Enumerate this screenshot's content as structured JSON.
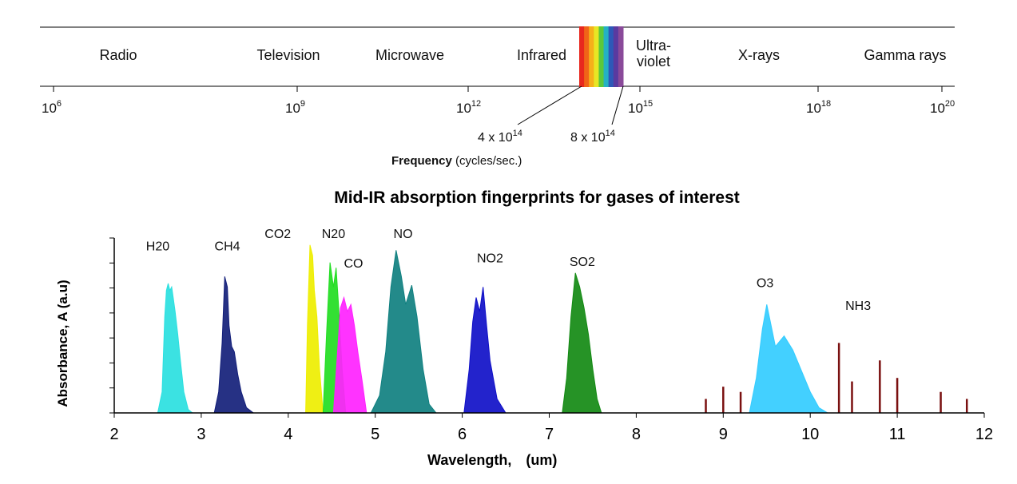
{
  "chart_data": [
    {
      "type": "other",
      "bands": [
        "Radio",
        "Television",
        "Microwave",
        "Infrared",
        "Ultra-\nviolet",
        "X-rays",
        "Gamma rays"
      ],
      "frequency_axis": {
        "label": "Frequency",
        "units": "(cycles/sec.)",
        "scale": "log",
        "ticks": [
          {
            "base": "10",
            "exp": "6",
            "value": 1000000.0
          },
          {
            "base": "10",
            "exp": "9",
            "value": 1000000000.0
          },
          {
            "base": "10",
            "exp": "12",
            "value": 1000000000000.0
          },
          {
            "base": "10",
            "exp": "15",
            "value": 1000000000000000.0
          },
          {
            "base": "10",
            "exp": "18",
            "value": 1e+18
          },
          {
            "base": "10",
            "exp": "20",
            "value": 1e+20
          }
        ]
      },
      "visible_light": {
        "start": {
          "mantissa": "4 x 10",
          "exp": "14",
          "value": 400000000000000.0
        },
        "end": {
          "mantissa": "8 x 10",
          "exp": "14",
          "value": 800000000000000.0
        },
        "colors": [
          "#e8281e",
          "#f06418",
          "#f6b01a",
          "#e8e624",
          "#5cc83a",
          "#25b1c3",
          "#2d59b8",
          "#5a3aa0",
          "#8a4a9a"
        ]
      }
    },
    {
      "type": "area",
      "title": "Mid-IR absorption fingerprints for gases of interest",
      "xlabel": "Wavelength,",
      "xunit": "(um)",
      "ylabel": "Absorbance, A (a.u)",
      "xlim": [
        2,
        12
      ],
      "ylim": [
        0,
        1
      ],
      "xticks": [
        "2",
        "3",
        "4",
        "5",
        "6",
        "7",
        "8",
        "9",
        "10",
        "11",
        "12"
      ],
      "grid": false,
      "series": [
        {
          "name": "H20",
          "color": "#2ae0e0",
          "label_at": [
            2.5,
            0.93
          ],
          "points": [
            [
              2.5,
              0
            ],
            [
              2.55,
              0.12
            ],
            [
              2.58,
              0.55
            ],
            [
              2.6,
              0.7
            ],
            [
              2.62,
              0.74
            ],
            [
              2.64,
              0.7
            ],
            [
              2.66,
              0.72
            ],
            [
              2.68,
              0.65
            ],
            [
              2.7,
              0.58
            ],
            [
              2.73,
              0.45
            ],
            [
              2.76,
              0.3
            ],
            [
              2.8,
              0.12
            ],
            [
              2.85,
              0.02
            ],
            [
              2.9,
              0
            ]
          ]
        },
        {
          "name": "CH4",
          "color": "#14207a",
          "label_at": [
            3.3,
            0.93
          ],
          "points": [
            [
              3.15,
              0
            ],
            [
              3.2,
              0.12
            ],
            [
              3.24,
              0.4
            ],
            [
              3.27,
              0.78
            ],
            [
              3.3,
              0.72
            ],
            [
              3.32,
              0.5
            ],
            [
              3.35,
              0.38
            ],
            [
              3.38,
              0.35
            ],
            [
              3.42,
              0.22
            ],
            [
              3.46,
              0.12
            ],
            [
              3.52,
              0.03
            ],
            [
              3.6,
              0
            ]
          ]
        },
        {
          "name": "CO2",
          "color": "#eeee00",
          "label_at": [
            3.88,
            1.0
          ],
          "points": [
            [
              4.2,
              0
            ],
            [
              4.22,
              0.5
            ],
            [
              4.25,
              0.96
            ],
            [
              4.28,
              0.9
            ],
            [
              4.3,
              0.7
            ],
            [
              4.33,
              0.55
            ],
            [
              4.36,
              0.25
            ],
            [
              4.4,
              0
            ]
          ]
        },
        {
          "name": "N20",
          "color": "#22dd22",
          "label_at": [
            4.52,
            1.0
          ],
          "points": [
            [
              4.4,
              0
            ],
            [
              4.44,
              0.45
            ],
            [
              4.48,
              0.86
            ],
            [
              4.52,
              0.72
            ],
            [
              4.55,
              0.83
            ],
            [
              4.58,
              0.6
            ],
            [
              4.62,
              0.25
            ],
            [
              4.66,
              0
            ]
          ]
        },
        {
          "name": "CO",
          "color": "#ff22ff",
          "label_at": [
            4.75,
            0.83
          ],
          "points": [
            [
              4.52,
              0
            ],
            [
              4.56,
              0.3
            ],
            [
              4.6,
              0.6
            ],
            [
              4.64,
              0.66
            ],
            [
              4.68,
              0.58
            ],
            [
              4.72,
              0.62
            ],
            [
              4.76,
              0.5
            ],
            [
              4.8,
              0.35
            ],
            [
              4.85,
              0.18
            ],
            [
              4.9,
              0
            ]
          ]
        },
        {
          "name": "NO",
          "color": "#108080",
          "label_at": [
            5.32,
            1.0
          ],
          "points": [
            [
              4.95,
              0
            ],
            [
              5.05,
              0.1
            ],
            [
              5.12,
              0.35
            ],
            [
              5.18,
              0.72
            ],
            [
              5.24,
              0.93
            ],
            [
              5.3,
              0.78
            ],
            [
              5.35,
              0.62
            ],
            [
              5.42,
              0.73
            ],
            [
              5.48,
              0.55
            ],
            [
              5.55,
              0.25
            ],
            [
              5.62,
              0.05
            ],
            [
              5.7,
              0
            ]
          ]
        },
        {
          "name": "NO2",
          "color": "#1010c8",
          "label_at": [
            6.32,
            0.86
          ],
          "points": [
            [
              6.02,
              0
            ],
            [
              6.08,
              0.25
            ],
            [
              6.12,
              0.52
            ],
            [
              6.16,
              0.66
            ],
            [
              6.2,
              0.58
            ],
            [
              6.24,
              0.72
            ],
            [
              6.28,
              0.5
            ],
            [
              6.32,
              0.3
            ],
            [
              6.4,
              0.08
            ],
            [
              6.5,
              0
            ]
          ]
        },
        {
          "name": "SO2",
          "color": "#138a13",
          "label_at": [
            7.38,
            0.84
          ],
          "points": [
            [
              7.15,
              0
            ],
            [
              7.2,
              0.2
            ],
            [
              7.25,
              0.55
            ],
            [
              7.3,
              0.8
            ],
            [
              7.35,
              0.72
            ],
            [
              7.4,
              0.6
            ],
            [
              7.45,
              0.45
            ],
            [
              7.5,
              0.25
            ],
            [
              7.55,
              0.08
            ],
            [
              7.6,
              0
            ]
          ]
        },
        {
          "name": "O3",
          "color": "#33ccff",
          "label_at": [
            9.48,
            0.72
          ],
          "points": [
            [
              9.3,
              0
            ],
            [
              9.38,
              0.2
            ],
            [
              9.45,
              0.48
            ],
            [
              9.5,
              0.62
            ],
            [
              9.55,
              0.5
            ],
            [
              9.6,
              0.38
            ],
            [
              9.7,
              0.44
            ],
            [
              9.8,
              0.36
            ],
            [
              9.9,
              0.24
            ],
            [
              10.0,
              0.12
            ],
            [
              10.1,
              0.03
            ],
            [
              10.2,
              0
            ]
          ]
        },
        {
          "name": "NH3",
          "color": "#7a1010",
          "label_at": [
            10.55,
            0.59
          ],
          "points": [
            [
              8.6,
              0
            ],
            [
              8.8,
              0.08
            ],
            [
              9.0,
              0.15
            ],
            [
              9.2,
              0.12
            ],
            [
              10.33,
              0.4
            ],
            [
              10.48,
              0.18
            ],
            [
              10.8,
              0.3
            ],
            [
              11.0,
              0.2
            ],
            [
              11.5,
              0.12
            ],
            [
              11.8,
              0.08
            ],
            [
              12,
              0
            ]
          ]
        }
      ]
    }
  ]
}
